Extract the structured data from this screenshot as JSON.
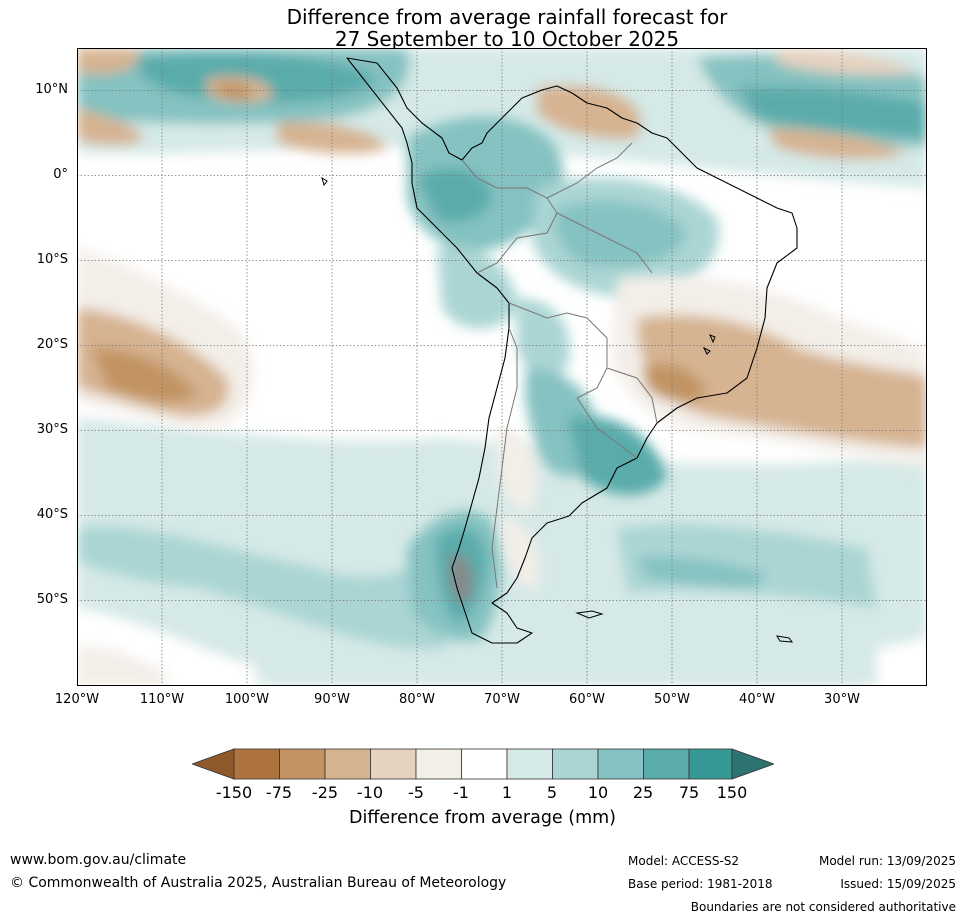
{
  "title": {
    "line1": "Difference from average rainfall forecast for",
    "line2": "27 September to 10 October 2025"
  },
  "map": {
    "lat_labels": [
      "10°N",
      "0°",
      "10°S",
      "20°S",
      "30°S",
      "40°S",
      "50°S"
    ],
    "lon_labels": [
      "120°W",
      "110°W",
      "100°W",
      "90°W",
      "80°W",
      "70°W",
      "60°W",
      "50°W",
      "40°W",
      "30°W"
    ],
    "land_outline_color": "#000000",
    "border_color": "#777777",
    "grid": true
  },
  "colorbar": {
    "label": "Difference from average (mm)",
    "ticks": [
      "-150",
      "-75",
      "-25",
      "-10",
      "-5",
      "-1",
      "1",
      "5",
      "10",
      "25",
      "75",
      "150"
    ],
    "colors": [
      "#8f5a2b",
      "#ad743f",
      "#c29464",
      "#d6b391",
      "#e6d2c0",
      "#f3eee8",
      "#ffffff",
      "#d5e9e7",
      "#aad5d4",
      "#85c2c1",
      "#5aacab",
      "#369995",
      "#2d7370"
    ]
  },
  "footer": {
    "website": "www.bom.gov.au/climate",
    "copyright": "© Commonwealth of Australia 2025, Australian Bureau of Meteorology",
    "model": "Model: ACCESS-S2",
    "base_period": "Base period: 1981-2018",
    "model_run": "Model run: 13/09/2025",
    "issued": "Issued: 15/09/2025",
    "disclaimer": "Boundaries are not considered authoritative"
  }
}
